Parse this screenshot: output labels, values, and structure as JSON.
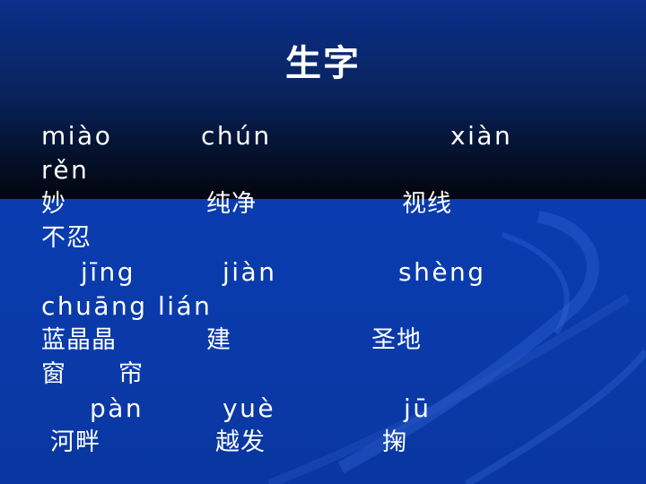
{
  "slide": {
    "title": "生字",
    "rows": [
      {
        "items": [
          "miào",
          "chún",
          "xiàn"
        ]
      },
      {
        "items": [
          "rěn"
        ]
      },
      {
        "items": [
          "妙",
          "纯净",
          "视线"
        ]
      },
      {
        "items": [
          "不忍"
        ]
      },
      {
        "items": [
          "jīng",
          "jiàn",
          "shèng"
        ]
      },
      {
        "items": [
          "chuāng lián"
        ]
      },
      {
        "items": [
          "蓝晶晶",
          "建",
          "圣地"
        ]
      },
      {
        "items": [
          "窗",
          "帘"
        ]
      },
      {
        "items": [
          "pàn",
          "yuè",
          "jū"
        ]
      },
      {
        "items": [
          "河畔",
          "越发",
          "掬"
        ]
      }
    ]
  },
  "colors": {
    "text": "#ffffff",
    "background_top": "#040d22",
    "background_bottom": "#0a3aa8"
  }
}
